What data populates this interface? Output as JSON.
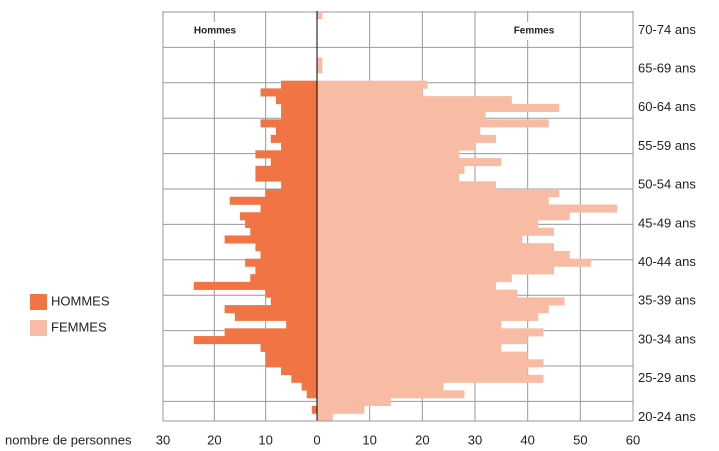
{
  "chart_data": {
    "type": "pyramid",
    "x_axis_label": "nombre de personnes",
    "panel_labels": [
      "Hommes",
      "Femmes"
    ],
    "age_group_labels": [
      "70-74 ans",
      "65-69 ans",
      "60-64 ans",
      "55-59 ans",
      "50-54 ans",
      "45-49 ans",
      "40-44 ans",
      "35-39 ans",
      "30-34 ans",
      "25-29 ans",
      "20-24 ans"
    ],
    "categories": [
      null,
      null,
      null,
      null,
      null,
      null,
      null,
      null,
      null,
      null,
      null,
      null,
      null,
      null,
      null,
      null,
      null,
      null,
      null,
      null,
      null,
      null,
      null,
      null,
      null,
      null,
      null,
      null,
      null,
      null,
      null,
      null,
      null,
      null,
      null,
      null,
      null,
      null,
      null,
      null,
      null,
      null,
      null,
      null,
      null,
      null,
      null,
      null,
      null,
      null,
      null,
      null,
      null
    ],
    "series": [
      {
        "name": "HOMMES",
        "color": "#f07444",
        "side": "left",
        "values": [
          0,
          0,
          0,
          0,
          0,
          0,
          0,
          0,
          0,
          7,
          11,
          8,
          7,
          7,
          11,
          8,
          9,
          7,
          12,
          9,
          12,
          12,
          7,
          10,
          17,
          11,
          15,
          14,
          13,
          18,
          12,
          11,
          14,
          12,
          13,
          24,
          10,
          9,
          18,
          16,
          6,
          18,
          24,
          11,
          10,
          10,
          7,
          5,
          3,
          2,
          0,
          1,
          0
        ]
      },
      {
        "name": "FEMMES",
        "color": "#f8bca4",
        "side": "right",
        "values": [
          1,
          0,
          0,
          0,
          0,
          0,
          1,
          1,
          0,
          21,
          20,
          37,
          46,
          32,
          44,
          31,
          34,
          30,
          27,
          35,
          28,
          27,
          34,
          46,
          44,
          57,
          48,
          42,
          45,
          39,
          45,
          48,
          52,
          45,
          37,
          34,
          38,
          47,
          44,
          42,
          35,
          43,
          40,
          35,
          40,
          43,
          40,
          43,
          24,
          28,
          14,
          9,
          3
        ]
      }
    ],
    "xlim_left": [
      0,
      30
    ],
    "xticks_left": [
      30,
      20,
      10
    ],
    "xlim": [
      0,
      60
    ],
    "xticks": [
      0,
      10,
      20,
      30,
      40,
      50,
      60
    ],
    "grid": true
  }
}
